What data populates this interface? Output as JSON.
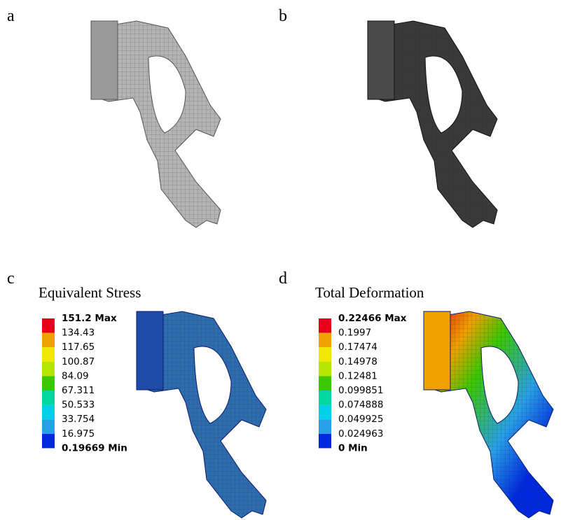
{
  "panels": [
    {
      "label": "a"
    },
    {
      "label": "b"
    },
    {
      "label": "c",
      "title": "Equivalent Stress",
      "legend": {
        "labels": [
          "151.2 Max",
          "134.43",
          "117.65",
          "100.87",
          "84.09",
          "67.311",
          "50.533",
          "33.754",
          "16.975",
          "0.19669 Min"
        ],
        "colors": [
          "#e8001a",
          "#f0a000",
          "#f0e800",
          "#b4e600",
          "#3cc800",
          "#00d8a0",
          "#00d0e8",
          "#28a0e8",
          "#0028e0"
        ]
      }
    },
    {
      "label": "d",
      "title": "Total Deformation",
      "legend": {
        "labels": [
          "0.22466 Max",
          "0.1997",
          "0.17474",
          "0.14978",
          "0.12481",
          "0.099851",
          "0.074888",
          "0.049925",
          "0.024963",
          "0 Min"
        ],
        "colors": [
          "#e8001a",
          "#f0a000",
          "#f0e800",
          "#b4e600",
          "#3cc800",
          "#00d8a0",
          "#00d0e8",
          "#28a0e8",
          "#0028e0"
        ]
      }
    }
  ]
}
